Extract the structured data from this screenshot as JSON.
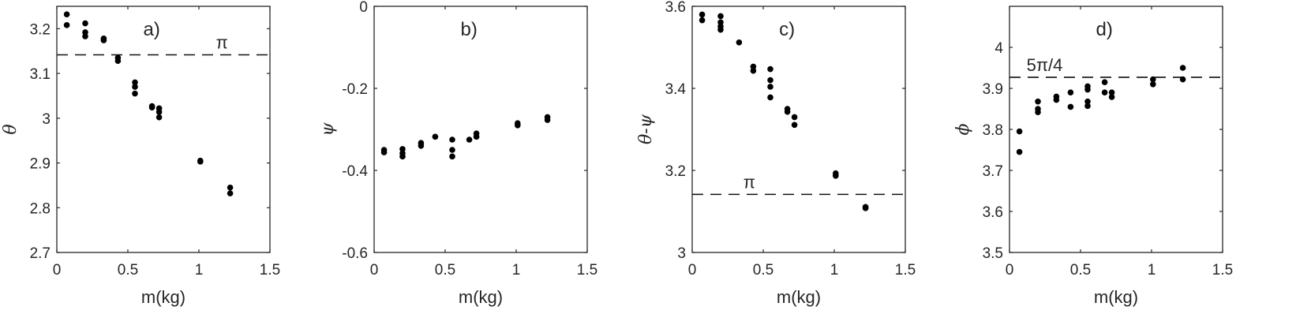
{
  "chart_data": [
    {
      "type": "scatter",
      "panel_label": "a)",
      "xlabel": "m(kg)",
      "ylabel": "θ",
      "xlim": [
        0,
        1.5
      ],
      "ylim": [
        2.7,
        3.25
      ],
      "xticks": [
        "0",
        "0.5",
        "1",
        "1.5"
      ],
      "yticks": [
        "2.7",
        "2.8",
        "2.9",
        "3",
        "3.1",
        "3.2"
      ],
      "ytick_values": [
        2.7,
        2.8,
        2.9,
        3.0,
        3.1,
        3.2
      ],
      "reference_line": {
        "y": 3.1416,
        "label": "π",
        "label_x": 1.12
      },
      "points": [
        [
          0.07,
          3.232
        ],
        [
          0.07,
          3.208
        ],
        [
          0.2,
          3.212
        ],
        [
          0.2,
          3.192
        ],
        [
          0.2,
          3.183
        ],
        [
          0.33,
          3.178
        ],
        [
          0.33,
          3.174
        ],
        [
          0.43,
          3.135
        ],
        [
          0.43,
          3.128
        ],
        [
          0.55,
          3.08
        ],
        [
          0.55,
          3.07
        ],
        [
          0.55,
          3.055
        ],
        [
          0.67,
          3.027
        ],
        [
          0.67,
          3.024
        ],
        [
          0.72,
          3.022
        ],
        [
          0.72,
          3.014
        ],
        [
          0.72,
          3.002
        ],
        [
          1.01,
          2.905
        ],
        [
          1.01,
          2.903
        ],
        [
          1.22,
          2.845
        ],
        [
          1.22,
          2.832
        ]
      ]
    },
    {
      "type": "scatter",
      "panel_label": "b)",
      "xlabel": "m(kg)",
      "ylabel": "ψ",
      "xlim": [
        0,
        1.5
      ],
      "ylim": [
        -0.6,
        0
      ],
      "xticks": [
        "0",
        "0.5",
        "1",
        "1.5"
      ],
      "yticks": [
        "-0.6",
        "-0.4",
        "-0.2",
        "0"
      ],
      "ytick_values": [
        -0.6,
        -0.4,
        -0.2,
        0
      ],
      "points": [
        [
          0.07,
          -0.35
        ],
        [
          0.07,
          -0.356
        ],
        [
          0.2,
          -0.348
        ],
        [
          0.2,
          -0.358
        ],
        [
          0.2,
          -0.366
        ],
        [
          0.33,
          -0.333
        ],
        [
          0.33,
          -0.34
        ],
        [
          0.43,
          -0.318
        ],
        [
          0.55,
          -0.325
        ],
        [
          0.55,
          -0.35
        ],
        [
          0.55,
          -0.366
        ],
        [
          0.67,
          -0.325
        ],
        [
          0.72,
          -0.31
        ],
        [
          0.72,
          -0.318
        ],
        [
          1.01,
          -0.285
        ],
        [
          1.01,
          -0.29
        ],
        [
          1.22,
          -0.27
        ],
        [
          1.22,
          -0.277
        ]
      ]
    },
    {
      "type": "scatter",
      "panel_label": "c)",
      "xlabel": "m(kg)",
      "ylabel": "θ-ψ",
      "xlim": [
        0,
        1.5
      ],
      "ylim": [
        3.0,
        3.6
      ],
      "xticks": [
        "0",
        "0.5",
        "1",
        "1.5"
      ],
      "yticks": [
        "3",
        "3.2",
        "3.4",
        "3.6"
      ],
      "ytick_values": [
        3.0,
        3.2,
        3.4,
        3.6
      ],
      "reference_line": {
        "y": 3.1416,
        "label": "π",
        "label_x": 0.36
      },
      "points": [
        [
          0.07,
          3.58
        ],
        [
          0.07,
          3.566
        ],
        [
          0.2,
          3.576
        ],
        [
          0.2,
          3.561
        ],
        [
          0.2,
          3.551
        ],
        [
          0.2,
          3.543
        ],
        [
          0.33,
          3.512
        ],
        [
          0.43,
          3.453
        ],
        [
          0.43,
          3.443
        ],
        [
          0.55,
          3.447
        ],
        [
          0.55,
          3.42
        ],
        [
          0.55,
          3.404
        ],
        [
          0.55,
          3.378
        ],
        [
          0.67,
          3.35
        ],
        [
          0.67,
          3.343
        ],
        [
          0.72,
          3.33
        ],
        [
          0.72,
          3.311
        ],
        [
          1.01,
          3.193
        ],
        [
          1.01,
          3.187
        ],
        [
          1.22,
          3.111
        ],
        [
          1.22,
          3.108
        ]
      ]
    },
    {
      "type": "scatter",
      "panel_label": "d)",
      "xlabel": "m(kg)",
      "ylabel": "ϕ",
      "xlim": [
        0,
        1.5
      ],
      "ylim": [
        3.5,
        4.1
      ],
      "xticks": [
        "0",
        "0.5",
        "1",
        "1.5"
      ],
      "yticks": [
        "3.5",
        "3.6",
        "3.7",
        "3.8",
        "3.9",
        "4"
      ],
      "ytick_values": [
        3.5,
        3.6,
        3.7,
        3.8,
        3.9,
        4.0
      ],
      "reference_line": {
        "y": 3.927,
        "label": "5π/4",
        "label_x": 0.12
      },
      "points": [
        [
          0.07,
          3.795
        ],
        [
          0.07,
          3.745
        ],
        [
          0.2,
          3.868
        ],
        [
          0.2,
          3.85
        ],
        [
          0.2,
          3.842
        ],
        [
          0.33,
          3.88
        ],
        [
          0.33,
          3.872
        ],
        [
          0.43,
          3.89
        ],
        [
          0.43,
          3.855
        ],
        [
          0.55,
          3.905
        ],
        [
          0.55,
          3.897
        ],
        [
          0.55,
          3.868
        ],
        [
          0.55,
          3.857
        ],
        [
          0.67,
          3.915
        ],
        [
          0.67,
          3.89
        ],
        [
          0.72,
          3.89
        ],
        [
          0.72,
          3.879
        ],
        [
          1.01,
          3.922
        ],
        [
          1.01,
          3.91
        ],
        [
          1.22,
          3.95
        ],
        [
          1.22,
          3.922
        ]
      ]
    }
  ]
}
